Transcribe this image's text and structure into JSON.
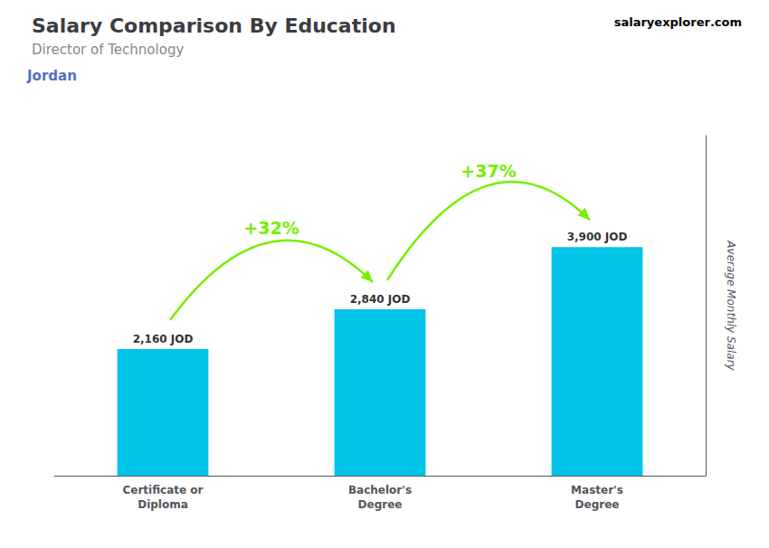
{
  "chart_data": {
    "type": "bar",
    "title": "Salary Comparison By Education",
    "subtitle": "Director of Technology",
    "categories": [
      "Certificate or\nDiploma",
      "Bachelor's\nDegree",
      "Master's\nDegree"
    ],
    "values": [
      2160,
      2840,
      3900
    ],
    "value_labels": [
      "2,160 JOD",
      "2,840 JOD",
      "3,900 JOD"
    ],
    "data_labels": true,
    "color": "#00c5e8",
    "ylabel": "Average Monthly Salary",
    "ylim": [
      0,
      5800
    ],
    "tick_labels": "x",
    "grid": false,
    "annotations": [
      {
        "text": "Jordan"
      },
      {
        "text": "salary"
      },
      {
        "text": "explorer"
      },
      {
        "text": ".com"
      },
      {
        "text": "+32%",
        "from": "Certificate or\nDiploma",
        "to": "Bachelor's\nDegree",
        "color": "#77ee00"
      },
      {
        "text": "+37%",
        "from": "Bachelor's\nDegree",
        "to": "Master's\nDegree",
        "color": "#77ee00"
      }
    ]
  }
}
